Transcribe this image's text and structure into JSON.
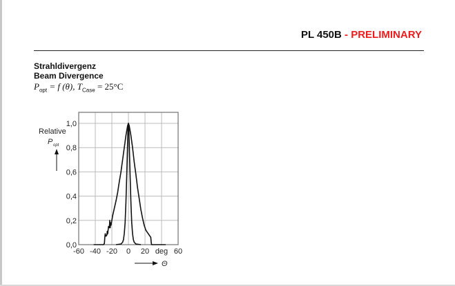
{
  "header": {
    "product": "PL 450B",
    "status": " - PRELIMINARY",
    "status_color": "#ee1c1c"
  },
  "section": {
    "title_de": "Strahldivergenz",
    "title_en": "Beam Divergence",
    "formula_p": "P",
    "formula_p_sub": "opt",
    "formula_mid": " = f (θ), ",
    "formula_t": "T",
    "formula_t_sub": "Case",
    "formula_end": " = 25°C"
  },
  "chart_data": {
    "type": "line",
    "ylabel": "Relative",
    "ylabel_symbol": "P",
    "ylabel_symbol_sub": "opt",
    "xlabel_symbol": "Θ",
    "x_unit": "deg",
    "xlim": [
      -60,
      60
    ],
    "ylim": [
      0,
      1.0
    ],
    "xticks": [
      "-60",
      "-40",
      "-20",
      "0",
      "20",
      "deg",
      "60"
    ],
    "xtick_values": [
      -60,
      -40,
      -20,
      0,
      20,
      40,
      60
    ],
    "yticks": [
      "0,0",
      "0,2",
      "0,4",
      "0,6",
      "0,8",
      "1,0"
    ],
    "ytick_values": [
      0,
      0.2,
      0.4,
      0.6,
      0.8,
      1.0
    ],
    "grid": true,
    "series": [
      {
        "x": [
          -42,
          -30,
          -29,
          -28.5,
          -28,
          -27,
          -26,
          -25.5,
          -25,
          -24,
          -23,
          -22.5,
          -22,
          -21.5,
          -21,
          -20,
          -19,
          -17,
          -15,
          -13,
          -11,
          -9,
          -7,
          -5,
          -3,
          -1,
          0,
          1,
          3,
          5,
          7,
          9,
          11,
          13,
          15,
          17,
          19,
          21,
          23,
          25,
          26,
          27,
          27.5,
          28,
          32,
          45
        ],
        "y": [
          0,
          0,
          0.01,
          0.06,
          0.09,
          0.07,
          0.08,
          0.11,
          0.09,
          0.15,
          0.14,
          0.2,
          0.14,
          0.18,
          0.16,
          0.2,
          0.24,
          0.3,
          0.36,
          0.43,
          0.52,
          0.6,
          0.7,
          0.8,
          0.9,
          0.98,
          1.0,
          0.98,
          0.9,
          0.8,
          0.68,
          0.58,
          0.47,
          0.38,
          0.29,
          0.22,
          0.16,
          0.12,
          0.1,
          0.08,
          0.07,
          0.06,
          0.02,
          0,
          0,
          0
        ]
      },
      {
        "x": [
          -15,
          -9,
          -7,
          -6,
          -5,
          -4,
          -3,
          -2,
          -1.5,
          -1,
          -0.5,
          0,
          0.5,
          1,
          1.5,
          2,
          3,
          4,
          5,
          6,
          7,
          9,
          15
        ],
        "y": [
          0,
          0.005,
          0.02,
          0.04,
          0.09,
          0.18,
          0.35,
          0.58,
          0.7,
          0.84,
          0.95,
          1.0,
          0.95,
          0.84,
          0.7,
          0.58,
          0.35,
          0.18,
          0.09,
          0.04,
          0.02,
          0.005,
          0
        ]
      }
    ]
  }
}
